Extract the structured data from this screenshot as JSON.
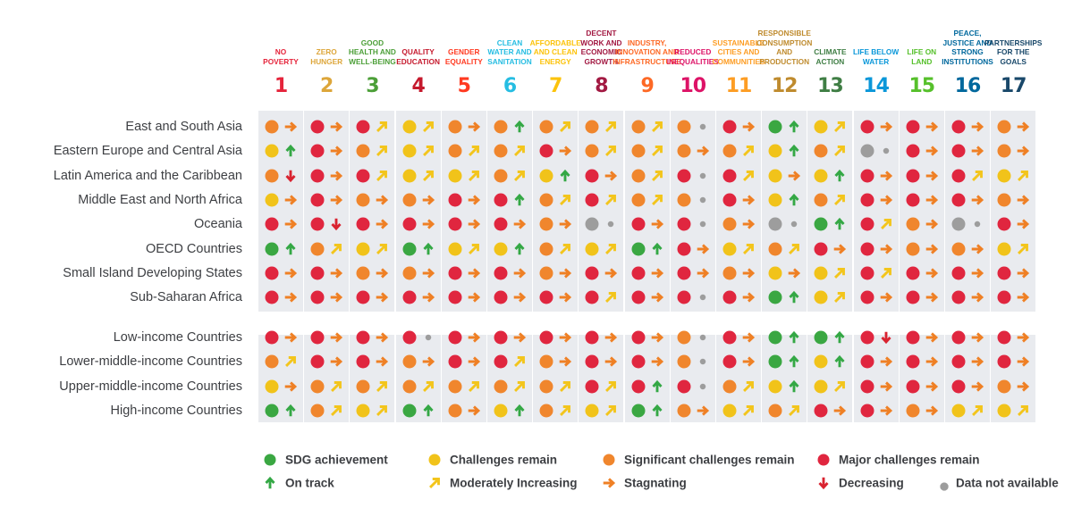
{
  "chart_data": {
    "type": "table",
    "goals": [
      {
        "number": "1",
        "name": "NO POVERTY",
        "color": "#e5243b"
      },
      {
        "number": "2",
        "name": "ZERO HUNGER",
        "color": "#dda63a"
      },
      {
        "number": "3",
        "name": "GOOD HEALTH AND WELL-BEING",
        "color": "#4c9f38"
      },
      {
        "number": "4",
        "name": "QUALITY EDUCATION",
        "color": "#c5192d"
      },
      {
        "number": "5",
        "name": "GENDER EQUALITY",
        "color": "#ff3a21"
      },
      {
        "number": "6",
        "name": "CLEAN WATER AND SANITATION",
        "color": "#26bde2"
      },
      {
        "number": "7",
        "name": "AFFORDABLE AND CLEAN ENERGY",
        "color": "#fcc30b"
      },
      {
        "number": "8",
        "name": "DECENT WORK AND ECONOMIC GROWTH",
        "color": "#a21942"
      },
      {
        "number": "9",
        "name": "INDUSTRY, INNOVATION AND INFRASTRUCTURE",
        "color": "#fd6925"
      },
      {
        "number": "10",
        "name": "REDUCED INEQUALITIES",
        "color": "#dd1367"
      },
      {
        "number": "11",
        "name": "SUSTAINABLE CITIES AND COMMUNITIES",
        "color": "#fd9d24"
      },
      {
        "number": "12",
        "name": "RESPONSIBLE CONSUMPTION AND PRODUCTION",
        "color": "#bf8b2e"
      },
      {
        "number": "13",
        "name": "CLIMATE ACTION",
        "color": "#3f7e44"
      },
      {
        "number": "14",
        "name": "LIFE BELOW WATER",
        "color": "#0a97d9"
      },
      {
        "number": "15",
        "name": "LIFE ON LAND",
        "color": "#56c02b"
      },
      {
        "number": "16",
        "name": "PEACE, JUSTICE AND STRONG INSTITUTIONS",
        "color": "#00689d"
      },
      {
        "number": "17",
        "name": "PARTNERSHIPS FOR THE GOALS",
        "color": "#19486a"
      }
    ],
    "rows": [
      {
        "label": "East and South Asia",
        "cells": [
          "O>",
          "R>",
          "R/",
          "Y/",
          "O>",
          "O^",
          "O/",
          "O/",
          "O/",
          "O.",
          "R>",
          "G^",
          "Y/",
          "R>",
          "R>",
          "R>",
          "O>"
        ]
      },
      {
        "label": "Eastern Europe and Central Asia",
        "cells": [
          "Y^",
          "R>",
          "O/",
          "Y/",
          "O/",
          "O/",
          "R>",
          "O/",
          "O/",
          "O>",
          "O/",
          "Y^",
          "O/",
          "N.",
          "R>",
          "R>",
          "O>"
        ]
      },
      {
        "label": "Latin America and the Caribbean",
        "cells": [
          "Ov",
          "R>",
          "R/",
          "Y/",
          "Y/",
          "O/",
          "Y^",
          "R>",
          "O/",
          "R.",
          "R/",
          "Y>",
          "Y^",
          "R>",
          "R>",
          "R/",
          "Y/"
        ]
      },
      {
        "label": "Middle East and North Africa",
        "cells": [
          "Y>",
          "R>",
          "O>",
          "O>",
          "R>",
          "R^",
          "O/",
          "R/",
          "O/",
          "O.",
          "R>",
          "Y^",
          "O/",
          "R>",
          "R>",
          "R>",
          "O>"
        ]
      },
      {
        "label": "Oceania",
        "cells": [
          "R>",
          "Rv",
          "R>",
          "R>",
          "R>",
          "R>",
          "O>",
          "N.",
          "R>",
          "R.",
          "O>",
          "N.",
          "G^",
          "R/",
          "O>",
          "N.",
          "R>"
        ]
      },
      {
        "label": "OECD Countries",
        "cells": [
          "G^",
          "O/",
          "Y/",
          "G^",
          "Y/",
          "Y^",
          "O/",
          "Y/",
          "G^",
          "R>",
          "Y/",
          "O/",
          "R>",
          "R>",
          "O>",
          "O>",
          "Y/"
        ]
      },
      {
        "label": "Small Island Developing States",
        "cells": [
          "R>",
          "R>",
          "O>",
          "O>",
          "R>",
          "R>",
          "O>",
          "R>",
          "R>",
          "R>",
          "O>",
          "Y>",
          "Y/",
          "R/",
          "R>",
          "R>",
          "R>"
        ]
      },
      {
        "label": "Sub-Saharan Africa",
        "cells": [
          "R>",
          "R>",
          "R>",
          "R>",
          "R>",
          "R>",
          "R>",
          "R/",
          "R>",
          "R.",
          "R>",
          "G^",
          "Y/",
          "R>",
          "R>",
          "R>",
          "R>"
        ]
      },
      {
        "label": "Low-income Countries",
        "cells": [
          "R>",
          "R>",
          "R>",
          "R.",
          "R>",
          "R>",
          "R>",
          "R>",
          "R>",
          "O.",
          "R>",
          "G^",
          "G^",
          "Rv",
          "R>",
          "R>",
          "R>"
        ]
      },
      {
        "label": "Lower-middle-income Countries",
        "cells": [
          "O/",
          "R>",
          "R>",
          "O>",
          "R>",
          "R/",
          "O>",
          "R>",
          "R>",
          "O.",
          "R>",
          "G^",
          "Y^",
          "R>",
          "R>",
          "R>",
          "R>"
        ]
      },
      {
        "label": "Upper-middle-income Countries",
        "cells": [
          "Y>",
          "O/",
          "O/",
          "O/",
          "O/",
          "O/",
          "O/",
          "R/",
          "R^",
          "R.",
          "O/",
          "Y^",
          "Y/",
          "R>",
          "R>",
          "R>",
          "O>"
        ]
      },
      {
        "label": "High-income Countries",
        "cells": [
          "G^",
          "O/",
          "Y/",
          "G^",
          "O>",
          "Y^",
          "O/",
          "Y/",
          "G^",
          "O>",
          "Y/",
          "O/",
          "R>",
          "R>",
          "O>",
          "Y/",
          "Y/"
        ]
      }
    ],
    "status_colors": {
      "G": "#3aa742",
      "Y": "#f1c31a",
      "O": "#f0862d",
      "R": "#e0263f",
      "N": "#9d9d9d"
    },
    "trend_colors": {
      "^": "#34a845",
      "/": "#f3c51c",
      ">": "#ef8025",
      "v": "#d92330",
      ".": "#9d9d9d"
    },
    "legend": [
      {
        "key": "G",
        "kind": "dot",
        "label": "SDG achievement"
      },
      {
        "key": "Y",
        "kind": "dot",
        "label": "Challenges remain"
      },
      {
        "key": "O",
        "kind": "dot",
        "label": "Significant challenges remain"
      },
      {
        "key": "R",
        "kind": "dot",
        "label": "Major challenges remain"
      },
      {
        "key": "^",
        "kind": "trend",
        "label": "On track"
      },
      {
        "key": "/",
        "kind": "trend",
        "label": "Moderately Increasing"
      },
      {
        "key": ">",
        "kind": "trend",
        "label": "Stagnating"
      },
      {
        "key": "v",
        "kind": "trend",
        "label": "Decreasing"
      },
      {
        "key": ".",
        "kind": "trend",
        "label": "Data not available"
      }
    ]
  }
}
